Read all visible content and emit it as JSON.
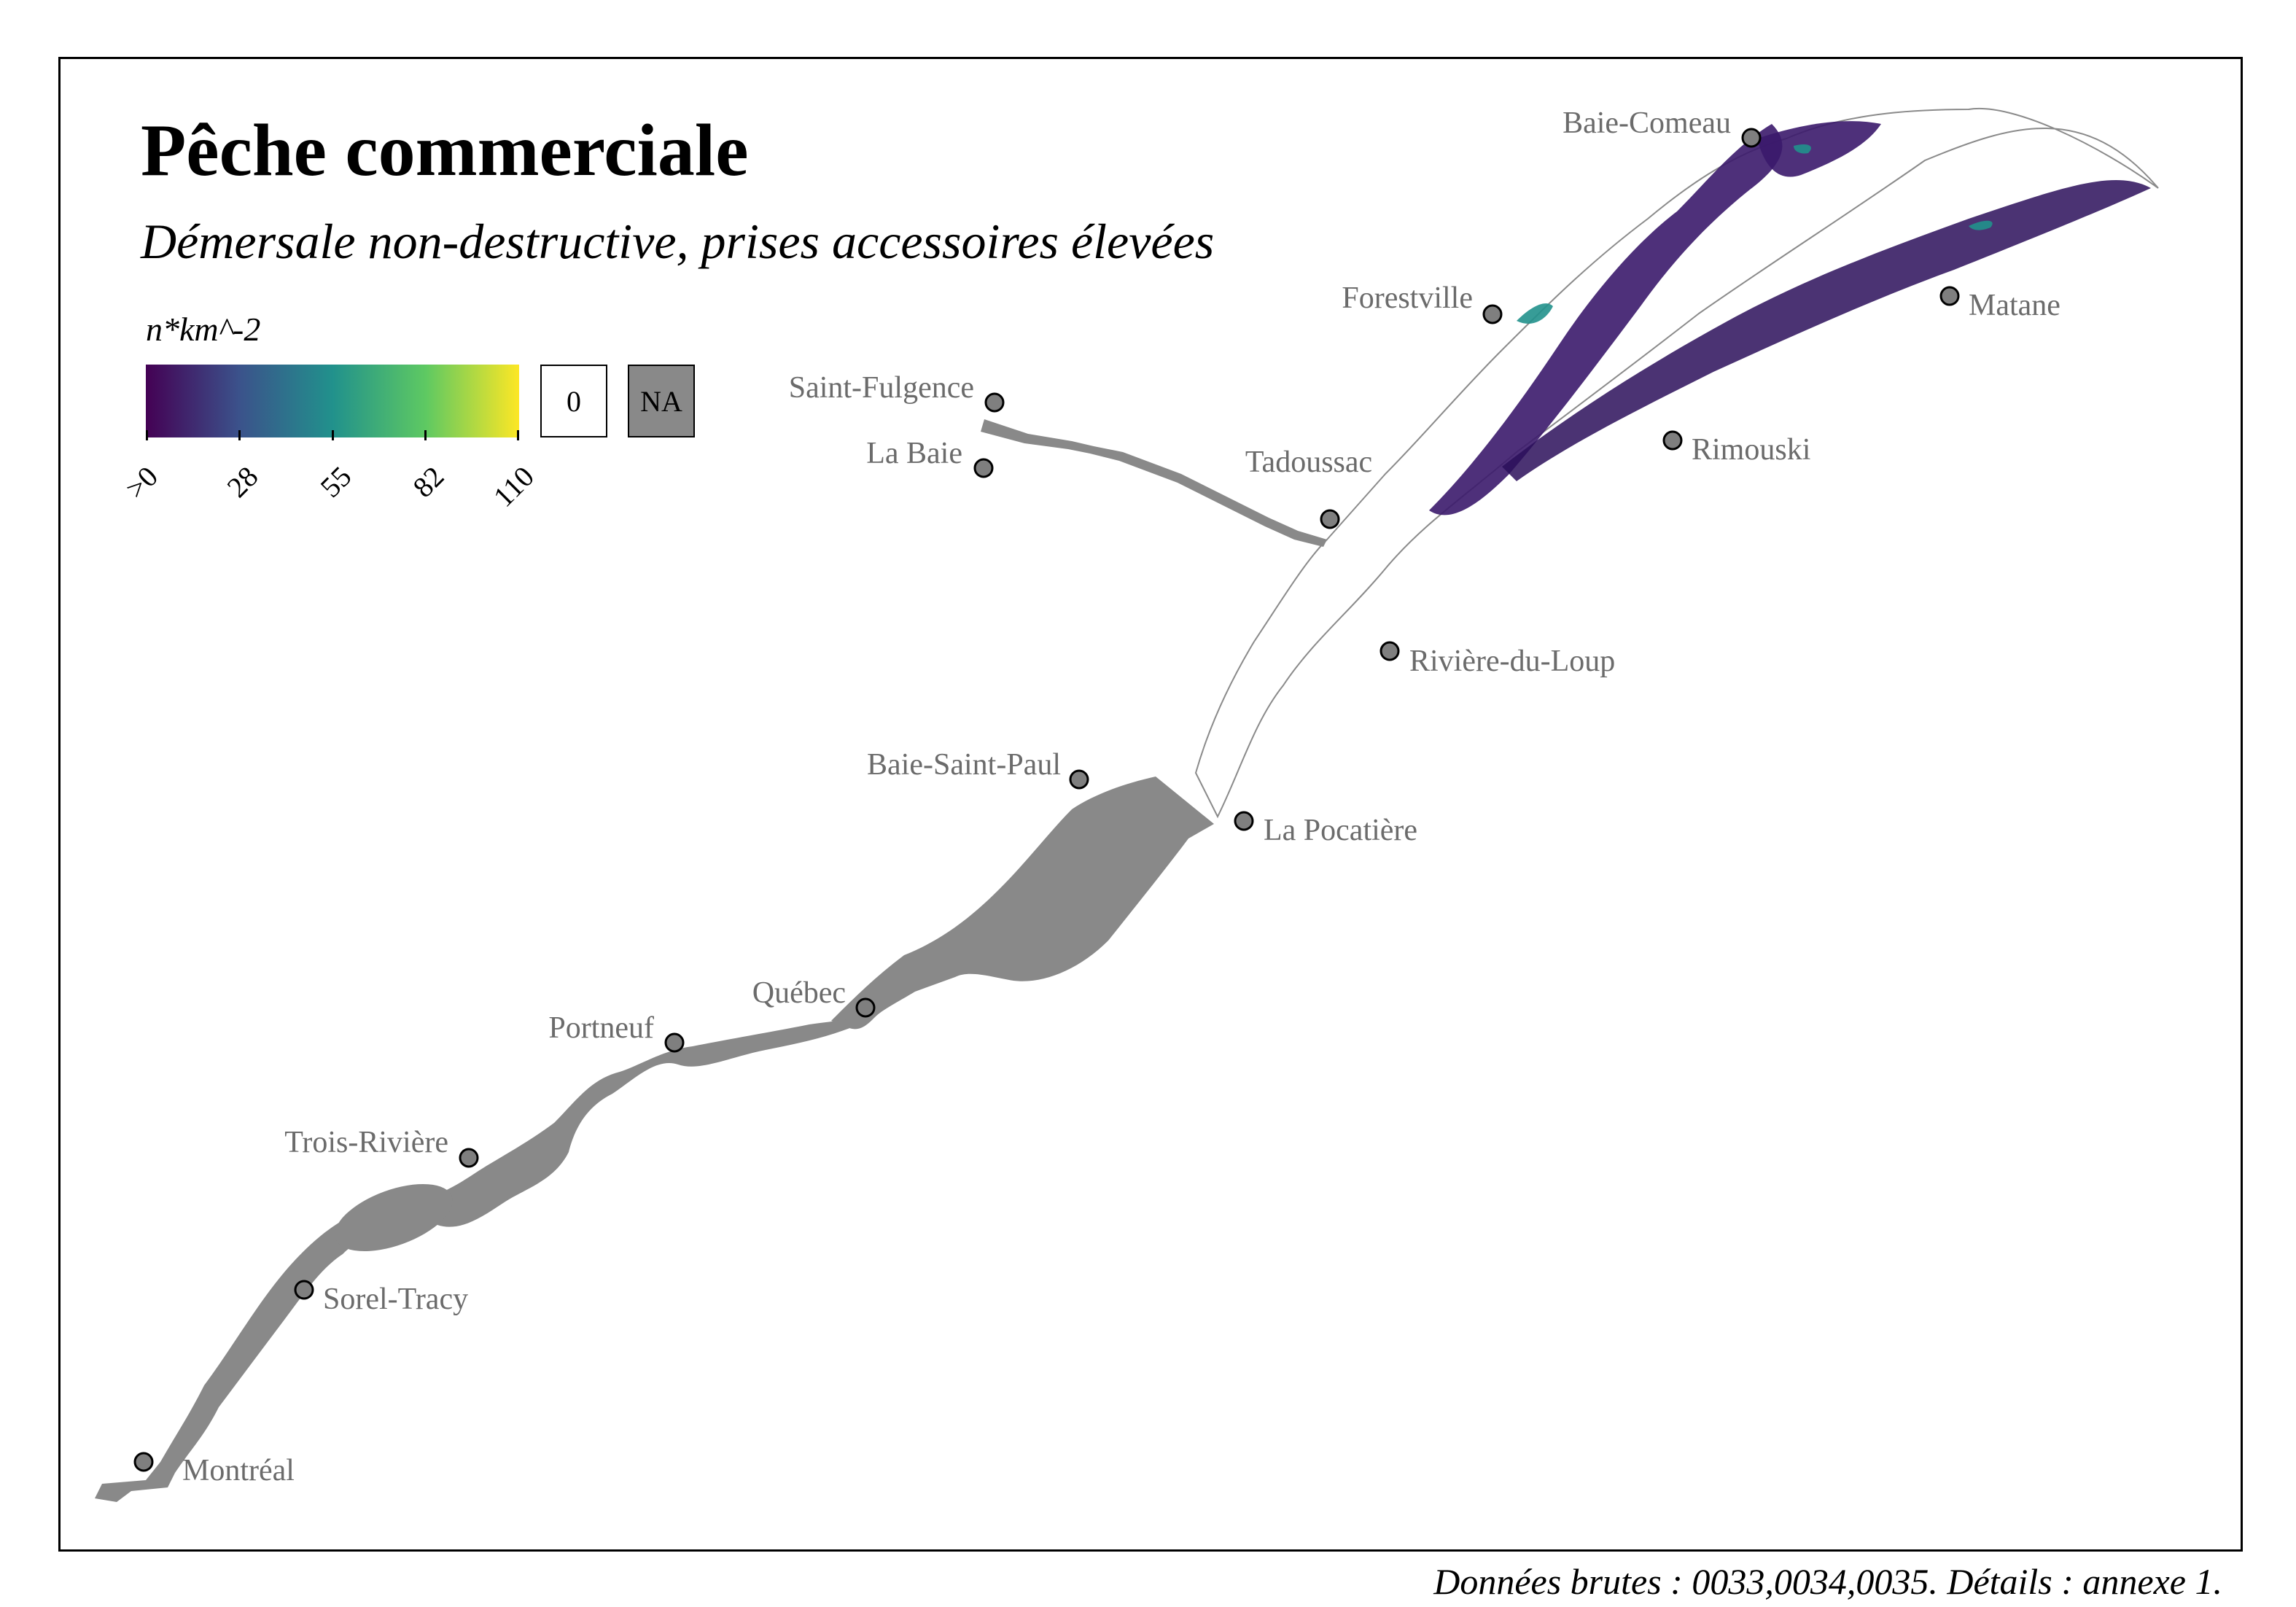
{
  "title": "Pêche commerciale",
  "subtitle": "Démersale non-destructive, prises accessoires élevées",
  "legend": {
    "title": "n*km^-2",
    "ticks": [
      ">0",
      "28",
      "55",
      "82",
      "110"
    ],
    "zero_label": "0",
    "na_label": "NA",
    "palette": [
      "#440154",
      "#3b528b",
      "#21918c",
      "#5ec962",
      "#fde725"
    ],
    "na_color": "#898989",
    "range": [
      0,
      110
    ]
  },
  "caption": "Données brutes : 0033,0034,0035. Détails : annexe 1.",
  "cities": [
    {
      "name": "Baie-Comeau"
    },
    {
      "name": "Forestville"
    },
    {
      "name": "Matane"
    },
    {
      "name": "Saint-Fulgence"
    },
    {
      "name": "La Baie"
    },
    {
      "name": "Tadoussac"
    },
    {
      "name": "Rimouski"
    },
    {
      "name": "Rivière-du-Loup"
    },
    {
      "name": "Baie-Saint-Paul"
    },
    {
      "name": "La Pocatière"
    },
    {
      "name": "Québec"
    },
    {
      "name": "Portneuf"
    },
    {
      "name": "Trois-Rivière"
    },
    {
      "name": "Sorel-Tracy"
    },
    {
      "name": "Montréal"
    }
  ],
  "colors": {
    "city_marker": "#7f7f7f",
    "city_label": "#6b6b6b",
    "no_data_region": "#898989"
  }
}
